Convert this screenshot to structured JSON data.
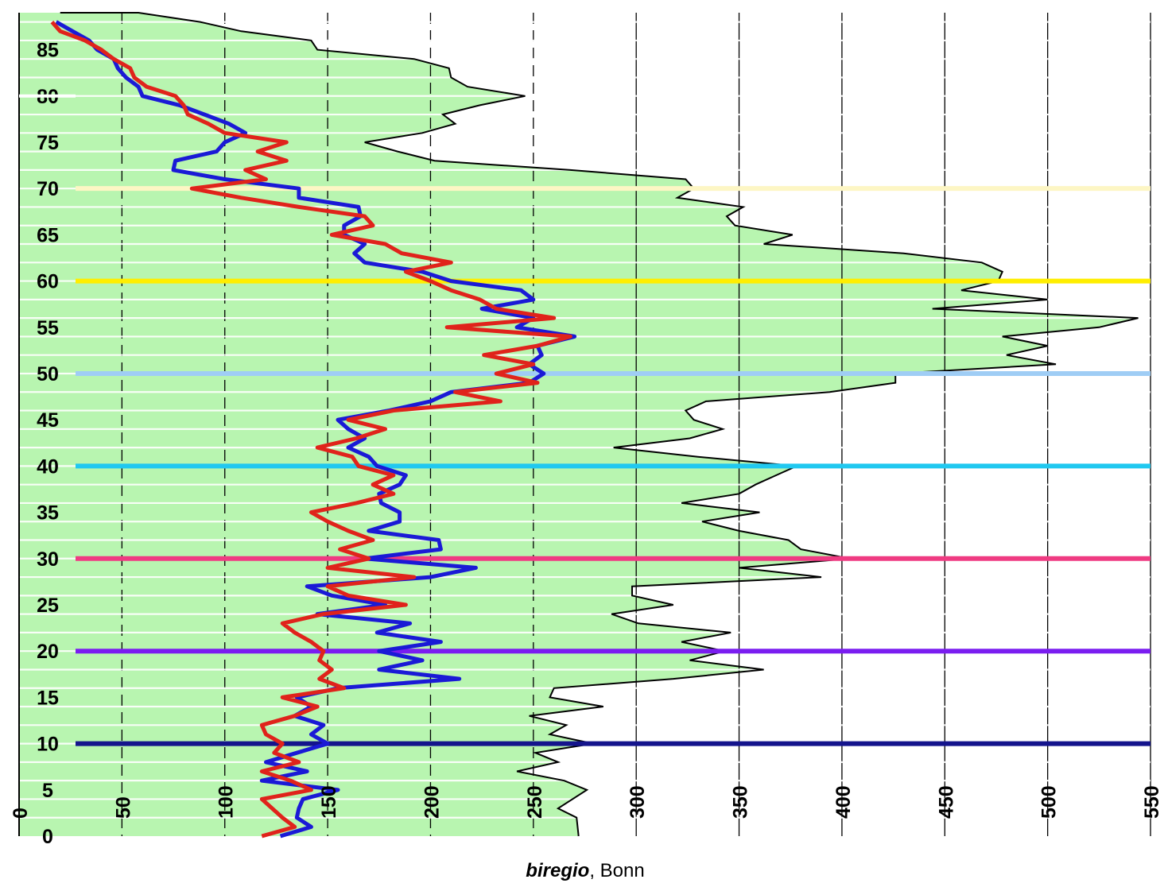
{
  "chart_data": {
    "type": "line",
    "orientation": "vertical-profile",
    "xlabel_italic": "biregio",
    "xlabel_rest": ", Bonn",
    "xlim": [
      0,
      550
    ],
    "ylim": [
      0,
      89
    ],
    "x_ticks": [
      0,
      50,
      100,
      150,
      200,
      250,
      300,
      350,
      400,
      450,
      500,
      550
    ],
    "y_ticks": [
      0,
      5,
      10,
      15,
      20,
      25,
      30,
      35,
      40,
      45,
      50,
      55,
      60,
      65,
      70,
      75,
      80,
      85
    ],
    "x_tick_labels": [
      "0",
      "50",
      "100",
      "150",
      "200",
      "250",
      "300",
      "350",
      "400",
      "450",
      "500",
      "550"
    ],
    "y_tick_labels": [
      "0",
      "5",
      "10",
      "15",
      "20",
      "25",
      "30",
      "35",
      "40",
      "45",
      "50",
      "55",
      "60",
      "65",
      "70",
      "75",
      "80",
      "85"
    ],
    "grid": {
      "vertical": true,
      "horizontal_white_stripes": true
    },
    "colors": {
      "fill": "#b8f5b0",
      "outline": "#000000",
      "blue": "#1a1ad6",
      "red": "#e0231b",
      "background": "#ffffff"
    },
    "series": [
      {
        "color": "#000000",
        "role": "filled-envelope",
        "points": [
          [
            272,
            0
          ],
          [
            271,
            2
          ],
          [
            262,
            3
          ],
          [
            276,
            5
          ],
          [
            265,
            6
          ],
          [
            242,
            7
          ],
          [
            262,
            8
          ],
          [
            251,
            9
          ],
          [
            279,
            10
          ],
          [
            258,
            11
          ],
          [
            266,
            12
          ],
          [
            248,
            13
          ],
          [
            284,
            14
          ],
          [
            258,
            15
          ],
          [
            260,
            16
          ],
          [
            318,
            17
          ],
          [
            362,
            18
          ],
          [
            326,
            19
          ],
          [
            343,
            20
          ],
          [
            322,
            21
          ],
          [
            346,
            22
          ],
          [
            301,
            23
          ],
          [
            288,
            24
          ],
          [
            318,
            25
          ],
          [
            298,
            26
          ],
          [
            298,
            27
          ],
          [
            390,
            28
          ],
          [
            350,
            29
          ],
          [
            404,
            30
          ],
          [
            380,
            31
          ],
          [
            374,
            32
          ],
          [
            350,
            33
          ],
          [
            332,
            34
          ],
          [
            360,
            35
          ],
          [
            322,
            36
          ],
          [
            350,
            37
          ],
          [
            358,
            38
          ],
          [
            368,
            39
          ],
          [
            378,
            40
          ],
          [
            330,
            41
          ],
          [
            289,
            42
          ],
          [
            326,
            43
          ],
          [
            342,
            44
          ],
          [
            328,
            45
          ],
          [
            324,
            46
          ],
          [
            334,
            47
          ],
          [
            394,
            48
          ],
          [
            426,
            49
          ],
          [
            426,
            50
          ],
          [
            504,
            51
          ],
          [
            480,
            52
          ],
          [
            500,
            53
          ],
          [
            478,
            54
          ],
          [
            525,
            55
          ],
          [
            544,
            56
          ],
          [
            444,
            57
          ],
          [
            500,
            58
          ],
          [
            458,
            59
          ],
          [
            476,
            60
          ],
          [
            478,
            61
          ],
          [
            468,
            62
          ],
          [
            430,
            63
          ],
          [
            362,
            64
          ],
          [
            376,
            65
          ],
          [
            348,
            66
          ],
          [
            344,
            67
          ],
          [
            352,
            68
          ],
          [
            320,
            69
          ],
          [
            328,
            70
          ],
          [
            324,
            71
          ],
          [
            268,
            72
          ],
          [
            202,
            73
          ],
          [
            184,
            74
          ],
          [
            168,
            75
          ],
          [
            196,
            76
          ],
          [
            212,
            77
          ],
          [
            206,
            78
          ],
          [
            224,
            79
          ],
          [
            246,
            80
          ],
          [
            218,
            81
          ],
          [
            210,
            82
          ],
          [
            209,
            83
          ],
          [
            192,
            84
          ],
          [
            145,
            85
          ],
          [
            142,
            86
          ],
          [
            108,
            87
          ],
          [
            88,
            88
          ],
          [
            58,
            89
          ],
          [
            20,
            89
          ]
        ]
      },
      {
        "color": "#1a1ad6",
        "role": "line",
        "points": [
          [
            127,
            0
          ],
          [
            142,
            1
          ],
          [
            135,
            2
          ],
          [
            136,
            3
          ],
          [
            138,
            4
          ],
          [
            155,
            5
          ],
          [
            118,
            6
          ],
          [
            140,
            7
          ],
          [
            120,
            8
          ],
          [
            135,
            9
          ],
          [
            150,
            10
          ],
          [
            142,
            11
          ],
          [
            148,
            12
          ],
          [
            134,
            13
          ],
          [
            142,
            14
          ],
          [
            135,
            15
          ],
          [
            155,
            16
          ],
          [
            214,
            17
          ],
          [
            175,
            18
          ],
          [
            196,
            19
          ],
          [
            175,
            20
          ],
          [
            205,
            21
          ],
          [
            174,
            22
          ],
          [
            190,
            23
          ],
          [
            145,
            24
          ],
          [
            178,
            25
          ],
          [
            152,
            26
          ],
          [
            140,
            27
          ],
          [
            200,
            28
          ],
          [
            222,
            29
          ],
          [
            168,
            30
          ],
          [
            205,
            31
          ],
          [
            204,
            32
          ],
          [
            170,
            33
          ],
          [
            185,
            34
          ],
          [
            185,
            35
          ],
          [
            176,
            36
          ],
          [
            175,
            37
          ],
          [
            185,
            38
          ],
          [
            188,
            39
          ],
          [
            174,
            40
          ],
          [
            170,
            41
          ],
          [
            160,
            42
          ],
          [
            168,
            43
          ],
          [
            160,
            44
          ],
          [
            155,
            45
          ],
          [
            180,
            46
          ],
          [
            200,
            47
          ],
          [
            210,
            48
          ],
          [
            248,
            49
          ],
          [
            255,
            50
          ],
          [
            248,
            51
          ],
          [
            254,
            52
          ],
          [
            252,
            53
          ],
          [
            270,
            54
          ],
          [
            242,
            55
          ],
          [
            250,
            56
          ],
          [
            225,
            57
          ],
          [
            250,
            58
          ],
          [
            244,
            59
          ],
          [
            210,
            60
          ],
          [
            196,
            61
          ],
          [
            168,
            62
          ],
          [
            163,
            63
          ],
          [
            168,
            64
          ],
          [
            158,
            65
          ],
          [
            158,
            66
          ],
          [
            166,
            67
          ],
          [
            165,
            68
          ],
          [
            136,
            69
          ],
          [
            136,
            70
          ],
          [
            100,
            71
          ],
          [
            75,
            72
          ],
          [
            76,
            73
          ],
          [
            96,
            74
          ],
          [
            100,
            75
          ],
          [
            110,
            76
          ],
          [
            102,
            77
          ],
          [
            90,
            78
          ],
          [
            78,
            79
          ],
          [
            60,
            80
          ],
          [
            58,
            81
          ],
          [
            52,
            82
          ],
          [
            48,
            83
          ],
          [
            46,
            84
          ],
          [
            38,
            85
          ],
          [
            34,
            86
          ],
          [
            26,
            87
          ],
          [
            18,
            88
          ]
        ]
      },
      {
        "color": "#e0231b",
        "role": "line",
        "points": [
          [
            118,
            0
          ],
          [
            134,
            1
          ],
          [
            128,
            2
          ],
          [
            118,
            4
          ],
          [
            142,
            5
          ],
          [
            132,
            6
          ],
          [
            118,
            7
          ],
          [
            136,
            8
          ],
          [
            124,
            9
          ],
          [
            128,
            10
          ],
          [
            120,
            11
          ],
          [
            118,
            12
          ],
          [
            134,
            13
          ],
          [
            145,
            14
          ],
          [
            128,
            15
          ],
          [
            158,
            16
          ],
          [
            146,
            17
          ],
          [
            152,
            18
          ],
          [
            146,
            19
          ],
          [
            148,
            20
          ],
          [
            142,
            21
          ],
          [
            134,
            22
          ],
          [
            128,
            23
          ],
          [
            148,
            24
          ],
          [
            188,
            25
          ],
          [
            160,
            26
          ],
          [
            150,
            27
          ],
          [
            192,
            28
          ],
          [
            150,
            29
          ],
          [
            170,
            30
          ],
          [
            156,
            31
          ],
          [
            172,
            32
          ],
          [
            160,
            33
          ],
          [
            150,
            34
          ],
          [
            142,
            35
          ],
          [
            164,
            36
          ],
          [
            182,
            37
          ],
          [
            172,
            38
          ],
          [
            182,
            39
          ],
          [
            165,
            40
          ],
          [
            162,
            41
          ],
          [
            145,
            42
          ],
          [
            164,
            43
          ],
          [
            178,
            44
          ],
          [
            160,
            45
          ],
          [
            182,
            46
          ],
          [
            234,
            47
          ],
          [
            212,
            48
          ],
          [
            252,
            49
          ],
          [
            232,
            50
          ],
          [
            250,
            51
          ],
          [
            226,
            52
          ],
          [
            252,
            53
          ],
          [
            268,
            54
          ],
          [
            208,
            55
          ],
          [
            260,
            56
          ],
          [
            232,
            57
          ],
          [
            224,
            58
          ],
          [
            210,
            59
          ],
          [
            200,
            60
          ],
          [
            188,
            61
          ],
          [
            210,
            62
          ],
          [
            186,
            63
          ],
          [
            178,
            64
          ],
          [
            152,
            65
          ],
          [
            172,
            66
          ],
          [
            168,
            67
          ],
          [
            136,
            68
          ],
          [
            108,
            69
          ],
          [
            84,
            70
          ],
          [
            120,
            71
          ],
          [
            110,
            72
          ],
          [
            130,
            73
          ],
          [
            116,
            74
          ],
          [
            130,
            75
          ],
          [
            100,
            76
          ],
          [
            92,
            77
          ],
          [
            82,
            78
          ],
          [
            80,
            79
          ],
          [
            76,
            80
          ],
          [
            62,
            81
          ],
          [
            56,
            82
          ],
          [
            54,
            83
          ],
          [
            46,
            84
          ],
          [
            40,
            85
          ],
          [
            32,
            86
          ],
          [
            20,
            87
          ],
          [
            16,
            88
          ]
        ]
      }
    ],
    "horizontal_reference_lines": [
      {
        "y": 70,
        "color": "#fdf6c4"
      },
      {
        "y": 60,
        "color": "#ffee00"
      },
      {
        "y": 50,
        "color": "#9fcdf5"
      },
      {
        "y": 40,
        "color": "#20c8f0"
      },
      {
        "y": 30,
        "color": "#ef3b82"
      },
      {
        "y": 20,
        "color": "#7a1df0"
      },
      {
        "y": 10,
        "color": "#14148c"
      }
    ]
  }
}
